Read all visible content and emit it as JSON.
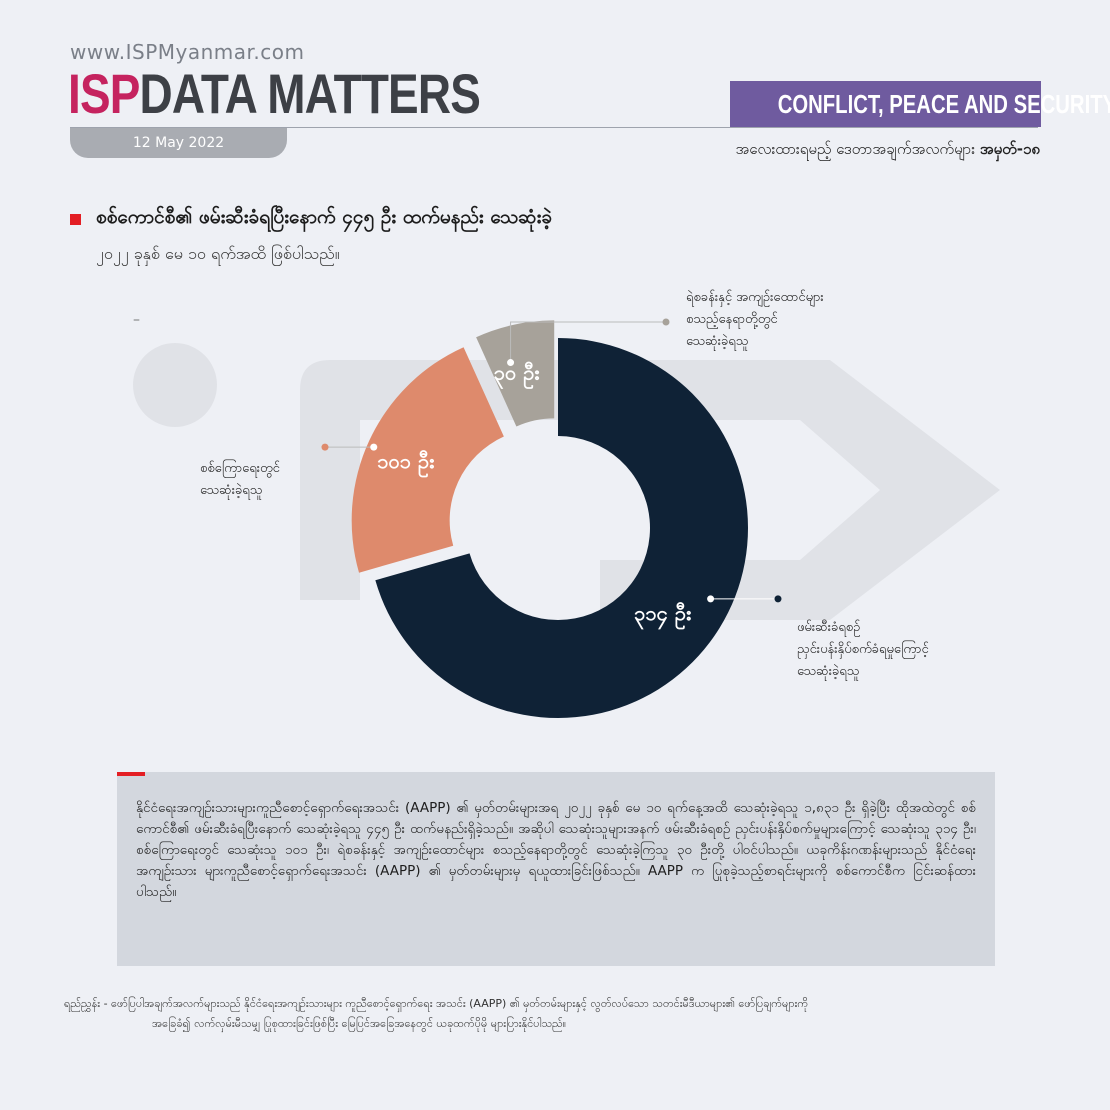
{
  "header": {
    "url": "www.ISPMyanmar.com",
    "logo_isp": "ISP",
    "logo_rest": "DATA MATTERS",
    "date": "12 May 2022",
    "category": "CONFLICT, PEACE AND SECURITY",
    "series_label": "အလေးထားရမည့် ဒေတာအချက်အလက်များ",
    "series_number": "အမှတ်-၁၈"
  },
  "title": "စစ်ကောင်စီ၏ ဖမ်းဆီးခံရပြီးနောက် ၄၄၅ ဦး ထက်မနည်း သေဆုံးခဲ့",
  "subtitle": "၂၀၂၂ ခုနှစ် မေ ၁၀ ရက်အထိ ဖြစ်ပါသည်။",
  "dash": "–",
  "chart_data": {
    "type": "pie",
    "donut": true,
    "total": 445,
    "slices": [
      {
        "value": 314,
        "value_label": "၃၁၄ ဦး",
        "label_lines": [
          "ဖမ်းဆီးခံရစဉ်",
          "ညှင်းပန်းနှိပ်စက်ခံရမှုကြောင့်",
          "သေဆုံးခဲ့ရသူ"
        ],
        "color": "#0f2236"
      },
      {
        "value": 101,
        "value_label": "၁၀၁ ဦး",
        "label_lines": [
          "စစ်ကြောရေးတွင်",
          "သေဆုံးခဲ့ရသူ"
        ],
        "color": "#de8a6c"
      },
      {
        "value": 30,
        "value_label": "၃၀ ဦး",
        "label_lines": [
          "ရဲစခန်းနှင့် အကျဉ်းထောင်များ",
          "စသည့်နေရာတို့တွင်",
          "သေဆုံးခဲ့ရသူ"
        ],
        "color": "#a7a29a"
      }
    ]
  },
  "note": "နိုင်ငံရေးအကျဉ်းသားများကူညီစောင့်ရှောက်ရေးအသင်း (AAPP) ၏ မှတ်တမ်းများအရ ၂၀၂၂ ခုနှစ် မေ ၁၀ ရက်နေ့အထိ သေဆုံးခဲ့ရသူ ၁,၈၃၁ ဦး ရှိခဲ့ပြီး ထိုအထဲတွင် စစ်ကောင်စီ၏ ဖမ်းဆီးခံရပြီးနောက် သေဆုံးခဲ့ရသူ ၄၄၅ ဦး ထက်မနည်းရှိခဲ့သည်။ အဆိုပါ သေဆုံးသူများအနက် ဖမ်းဆီးခံရစဉ် ညှင်းပန်းနှိပ်စက်မှုများကြောင့် သေဆုံးသူ ၃၁၄ ဦး၊ စစ်ကြောရေးတွင် သေဆုံးသူ ၁၀၁ ဦး၊ ရဲစခန်းနှင့် အကျဉ်းထောင်များ စသည့်နေရာတို့တွင် သေဆုံးခဲ့ကြသူ ၃၀ ဦးတို့ ပါဝင်ပါသည်။ ယခုကိန်းဂဏန်းများသည် နိုင်ငံရေးအကျဉ်းသား များကူညီစောင့်ရှောက်ရေးအသင်း (AAPP) ၏ မှတ်တမ်းများမှ ရယူထားခြင်းဖြစ်သည်။ AAPP က ပြုစုခဲ့သည့်စာရင်းများကို စစ်ကောင်စီက ငြင်းဆန်ထားပါသည်။",
  "footnote": {
    "line1": "ရည်ညွှန်း - ဖော်ပြပါအချက်အလက်များသည် နိုင်ငံရေးအကျဉ်းသားများ ကူညီစောင့်ရှောက်ရေး အသင်း (AAPP) ၏ မှတ်တမ်းများနှင့် လွတ်လပ်သော သတင်းမီဒီယာများ၏ ဖော်ပြချက်များကို",
    "line2": "အခြေခံ၍ လက်လှမ်းမီသမျှ ပြုစုထားခြင်းဖြစ်ပြီး မြေပြင်အခြေအနေတွင် ယခုထက်ပိုမို များပြားနိုင်ပါသည်။"
  }
}
